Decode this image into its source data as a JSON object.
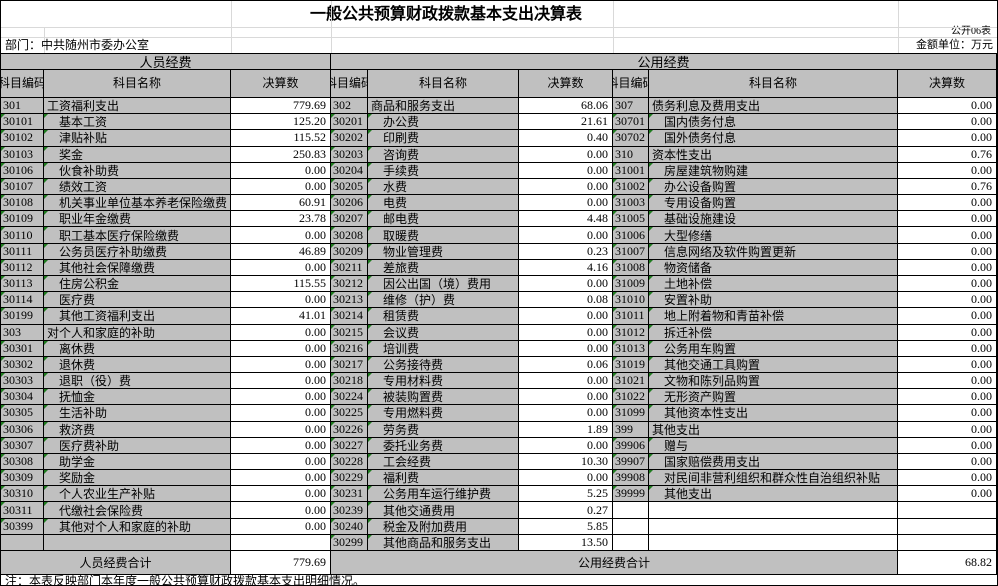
{
  "title": "一般公共预算财政拨款基本支出决算表",
  "meta": {
    "sheet_no": "公开06表",
    "department": "部门：中共随州市委办公室",
    "unit": "金额单位：万元"
  },
  "columns": {
    "code": "科目编码",
    "name": "科目名称",
    "value": "决算数"
  },
  "band_headers": [
    {
      "label": "人员经费"
    },
    {
      "label": "公用经费"
    }
  ],
  "totals": [
    {
      "label": "人员经费合计",
      "value": "779.69"
    },
    {
      "label": "公用经费合计",
      "value": "68.82"
    }
  ],
  "note": "注：本表反映部门本年度一般公共预算财政拨款基本支出明细情况。",
  "sections": [
    {
      "rows": [
        {
          "c": "301",
          "n": "工资福利支出",
          "v": "779.69",
          "sub": false
        },
        {
          "c": "30101",
          "n": "基本工资",
          "v": "125.20",
          "sub": true
        },
        {
          "c": "30102",
          "n": "津贴补贴",
          "v": "115.52",
          "sub": true
        },
        {
          "c": "30103",
          "n": "奖金",
          "v": "250.83",
          "sub": true
        },
        {
          "c": "30106",
          "n": "伙食补助费",
          "v": "0.00",
          "sub": true
        },
        {
          "c": "30107",
          "n": "绩效工资",
          "v": "0.00",
          "sub": true
        },
        {
          "c": "30108",
          "n": "机关事业单位基本养老保险缴费",
          "v": "60.91",
          "sub": true
        },
        {
          "c": "30109",
          "n": "职业年金缴费",
          "v": "23.78",
          "sub": true
        },
        {
          "c": "30110",
          "n": "职工基本医疗保险缴费",
          "v": "0.00",
          "sub": true
        },
        {
          "c": "30111",
          "n": "公务员医疗补助缴费",
          "v": "46.89",
          "sub": true
        },
        {
          "c": "30112",
          "n": "其他社会保障缴费",
          "v": "0.00",
          "sub": true
        },
        {
          "c": "30113",
          "n": "住房公积金",
          "v": "115.55",
          "sub": true
        },
        {
          "c": "30114",
          "n": "医疗费",
          "v": "0.00",
          "sub": true
        },
        {
          "c": "30199",
          "n": "其他工资福利支出",
          "v": "41.01",
          "sub": true
        },
        {
          "c": "303",
          "n": "对个人和家庭的补助",
          "v": "0.00",
          "sub": false
        },
        {
          "c": "30301",
          "n": "离休费",
          "v": "0.00",
          "sub": true
        },
        {
          "c": "30302",
          "n": "退休费",
          "v": "0.00",
          "sub": true
        },
        {
          "c": "30303",
          "n": "退职（役）费",
          "v": "0.00",
          "sub": true
        },
        {
          "c": "30304",
          "n": "抚恤金",
          "v": "0.00",
          "sub": true
        },
        {
          "c": "30305",
          "n": "生活补助",
          "v": "0.00",
          "sub": true
        },
        {
          "c": "30306",
          "n": "救济费",
          "v": "0.00",
          "sub": true
        },
        {
          "c": "30307",
          "n": "医疗费补助",
          "v": "0.00",
          "sub": true
        },
        {
          "c": "30308",
          "n": "助学金",
          "v": "0.00",
          "sub": true
        },
        {
          "c": "30309",
          "n": "奖励金",
          "v": "0.00",
          "sub": true
        },
        {
          "c": "30310",
          "n": "个人农业生产补贴",
          "v": "0.00",
          "sub": true
        },
        {
          "c": "30311",
          "n": "代缴社会保险费",
          "v": "0.00",
          "sub": true
        },
        {
          "c": "30399",
          "n": "其他对个人和家庭的补助",
          "v": "0.00",
          "sub": true
        },
        {
          "c": "",
          "n": "",
          "v": "",
          "sub": false
        }
      ]
    },
    {
      "rows": [
        {
          "c": "302",
          "n": "商品和服务支出",
          "v": "68.06",
          "sub": false
        },
        {
          "c": "30201",
          "n": "办公费",
          "v": "21.61",
          "sub": true
        },
        {
          "c": "30202",
          "n": "印刷费",
          "v": "0.40",
          "sub": true
        },
        {
          "c": "30203",
          "n": "咨询费",
          "v": "0.00",
          "sub": true
        },
        {
          "c": "30204",
          "n": "手续费",
          "v": "0.00",
          "sub": true
        },
        {
          "c": "30205",
          "n": "水费",
          "v": "0.00",
          "sub": true
        },
        {
          "c": "30206",
          "n": "电费",
          "v": "0.00",
          "sub": true
        },
        {
          "c": "30207",
          "n": "邮电费",
          "v": "4.48",
          "sub": true
        },
        {
          "c": "30208",
          "n": "取暖费",
          "v": "0.00",
          "sub": true
        },
        {
          "c": "30209",
          "n": "物业管理费",
          "v": "0.23",
          "sub": true
        },
        {
          "c": "30211",
          "n": "差旅费",
          "v": "4.16",
          "sub": true
        },
        {
          "c": "30212",
          "n": "因公出国（境）费用",
          "v": "0.00",
          "sub": true
        },
        {
          "c": "30213",
          "n": "维修（护）费",
          "v": "0.08",
          "sub": true
        },
        {
          "c": "30214",
          "n": "租赁费",
          "v": "0.00",
          "sub": true
        },
        {
          "c": "30215",
          "n": "会议费",
          "v": "0.00",
          "sub": true
        },
        {
          "c": "30216",
          "n": "培训费",
          "v": "0.00",
          "sub": true
        },
        {
          "c": "30217",
          "n": "公务接待费",
          "v": "0.06",
          "sub": true
        },
        {
          "c": "30218",
          "n": "专用材料费",
          "v": "0.00",
          "sub": true
        },
        {
          "c": "30224",
          "n": "被装购置费",
          "v": "0.00",
          "sub": true
        },
        {
          "c": "30225",
          "n": "专用燃料费",
          "v": "0.00",
          "sub": true
        },
        {
          "c": "30226",
          "n": "劳务费",
          "v": "1.89",
          "sub": true
        },
        {
          "c": "30227",
          "n": "委托业务费",
          "v": "0.00",
          "sub": true
        },
        {
          "c": "30228",
          "n": "工会经费",
          "v": "10.30",
          "sub": true
        },
        {
          "c": "30229",
          "n": "福利费",
          "v": "0.00",
          "sub": true
        },
        {
          "c": "30231",
          "n": "公务用车运行维护费",
          "v": "5.25",
          "sub": true
        },
        {
          "c": "30239",
          "n": "其他交通费用",
          "v": "0.27",
          "sub": true
        },
        {
          "c": "30240",
          "n": "税金及附加费用",
          "v": "5.85",
          "sub": true
        },
        {
          "c": "30299",
          "n": "其他商品和服务支出",
          "v": "13.50",
          "sub": true
        }
      ]
    },
    {
      "rows": [
        {
          "c": "307",
          "n": "债务利息及费用支出",
          "v": "0.00",
          "sub": false
        },
        {
          "c": "30701",
          "n": "国内债务付息",
          "v": "0.00",
          "sub": true
        },
        {
          "c": "30702",
          "n": "国外债务付息",
          "v": "0.00",
          "sub": true
        },
        {
          "c": "310",
          "n": "资本性支出",
          "v": "0.76",
          "sub": false
        },
        {
          "c": "31001",
          "n": "房屋建筑物购建",
          "v": "0.00",
          "sub": true
        },
        {
          "c": "31002",
          "n": "办公设备购置",
          "v": "0.76",
          "sub": true
        },
        {
          "c": "31003",
          "n": "专用设备购置",
          "v": "0.00",
          "sub": true
        },
        {
          "c": "31005",
          "n": "基础设施建设",
          "v": "0.00",
          "sub": true
        },
        {
          "c": "31006",
          "n": "大型修缮",
          "v": "0.00",
          "sub": true
        },
        {
          "c": "31007",
          "n": "信息网络及软件购置更新",
          "v": "0.00",
          "sub": true
        },
        {
          "c": "31008",
          "n": "物资储备",
          "v": "0.00",
          "sub": true
        },
        {
          "c": "31009",
          "n": "土地补偿",
          "v": "0.00",
          "sub": true
        },
        {
          "c": "31010",
          "n": "安置补助",
          "v": "0.00",
          "sub": true
        },
        {
          "c": "31011",
          "n": "地上附着物和青苗补偿",
          "v": "0.00",
          "sub": true
        },
        {
          "c": "31012",
          "n": "拆迁补偿",
          "v": "0.00",
          "sub": true
        },
        {
          "c": "31013",
          "n": "公务用车购置",
          "v": "0.00",
          "sub": true
        },
        {
          "c": "31019",
          "n": "其他交通工具购置",
          "v": "0.00",
          "sub": true
        },
        {
          "c": "31021",
          "n": "文物和陈列品购置",
          "v": "0.00",
          "sub": true
        },
        {
          "c": "31022",
          "n": "无形资产购置",
          "v": "0.00",
          "sub": true
        },
        {
          "c": "31099",
          "n": "其他资本性支出",
          "v": "0.00",
          "sub": true
        },
        {
          "c": "399",
          "n": "其他支出",
          "v": "0.00",
          "sub": false
        },
        {
          "c": "39906",
          "n": "赠与",
          "v": "0.00",
          "sub": true
        },
        {
          "c": "39907",
          "n": "国家赔偿费用支出",
          "v": "0.00",
          "sub": true
        },
        {
          "c": "39908",
          "n": "对民间非营利组织和群众性自治组织补贴",
          "v": "0.00",
          "sub": true
        },
        {
          "c": "39999",
          "n": "其他支出",
          "v": "0.00",
          "sub": true
        },
        {
          "c": "",
          "n": "",
          "v": "",
          "sub": false,
          "blank": "white"
        },
        {
          "c": "",
          "n": "",
          "v": "",
          "sub": false,
          "blank": "white"
        },
        {
          "c": "",
          "n": "",
          "v": "",
          "sub": false,
          "blank": "white"
        }
      ]
    }
  ]
}
